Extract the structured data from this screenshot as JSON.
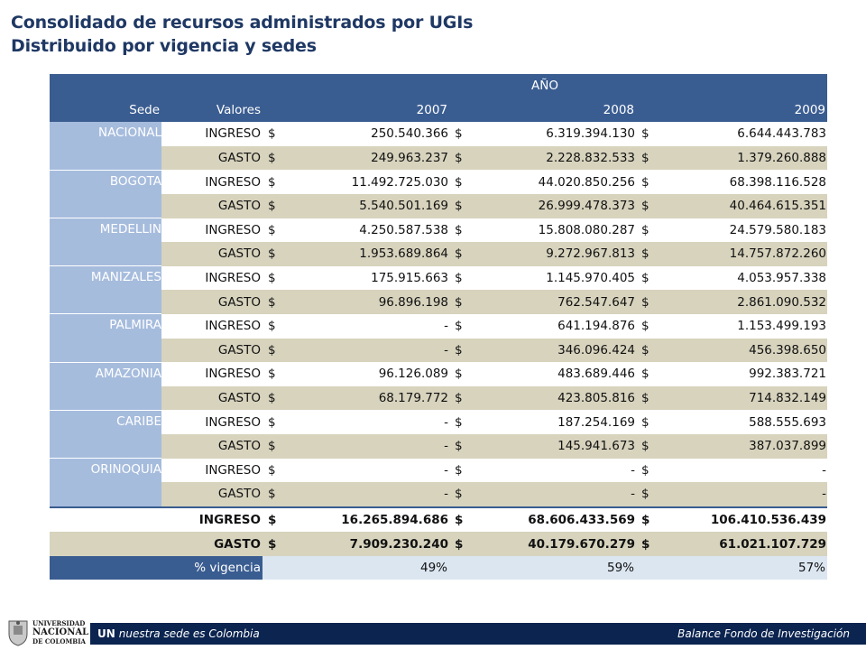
{
  "title": {
    "line1": "Consolidado de recursos  administrados por UGIs",
    "line2": "Distribuido por vigencia y sedes"
  },
  "table": {
    "group_header": "AÑO",
    "col_sede": "Sede",
    "col_valores": "Valores",
    "years": [
      "2007",
      "2008",
      "2009"
    ],
    "currency": "$",
    "rows": [
      {
        "sede": "NACIONAL",
        "ingreso": [
          "250.540.366",
          "6.319.394.130",
          "6.644.443.783"
        ],
        "gasto": [
          "249.963.237",
          "2.228.832.533",
          "1.379.260.888"
        ]
      },
      {
        "sede": "BOGOTA",
        "ingreso": [
          "11.492.725.030",
          "44.020.850.256",
          "68.398.116.528"
        ],
        "gasto": [
          "5.540.501.169",
          "26.999.478.373",
          "40.464.615.351"
        ]
      },
      {
        "sede": "MEDELLIN",
        "ingreso": [
          "4.250.587.538",
          "15.808.080.287",
          "24.579.580.183"
        ],
        "gasto": [
          "1.953.689.864",
          "9.272.967.813",
          "14.757.872.260"
        ]
      },
      {
        "sede": "MANIZALES",
        "ingreso": [
          "175.915.663",
          "1.145.970.405",
          "4.053.957.338"
        ],
        "gasto": [
          "96.896.198",
          "762.547.647",
          "2.861.090.532"
        ]
      },
      {
        "sede": "PALMIRA",
        "ingreso": [
          "-",
          "641.194.876",
          "1.153.499.193"
        ],
        "gasto": [
          "-",
          "346.096.424",
          "456.398.650"
        ]
      },
      {
        "sede": "AMAZONIA",
        "ingreso": [
          "96.126.089",
          "483.689.446",
          "992.383.721"
        ],
        "gasto": [
          "68.179.772",
          "423.805.816",
          "714.832.149"
        ]
      },
      {
        "sede": "CARIBE",
        "ingreso": [
          "-",
          "187.254.169",
          "588.555.693"
        ],
        "gasto": [
          "-",
          "145.941.673",
          "387.037.899"
        ]
      },
      {
        "sede": "ORINOQUIA",
        "ingreso": [
          "-",
          "-",
          "-"
        ],
        "gasto": [
          "-",
          "-",
          "-"
        ]
      }
    ],
    "label_ingreso": "INGRESO",
    "label_gasto": "GASTO",
    "total_ingreso": [
      "16.265.894.686",
      "68.606.433.569",
      "106.410.536.439"
    ],
    "total_gasto": [
      "7.909.230.240",
      "40.179.670.279",
      "61.021.107.729"
    ],
    "pct_label": "% vigencia",
    "pct": [
      "49%",
      "59%",
      "57%"
    ]
  },
  "footer": {
    "brand_bold": "UN",
    "brand_text": "nuestra sede es Colombia",
    "right_text": "Balance Fondo de Investigación",
    "logo_line1": "UNIVERSIDAD",
    "logo_line2": "NACIONAL",
    "logo_line3": "DE COLOMBIA"
  }
}
